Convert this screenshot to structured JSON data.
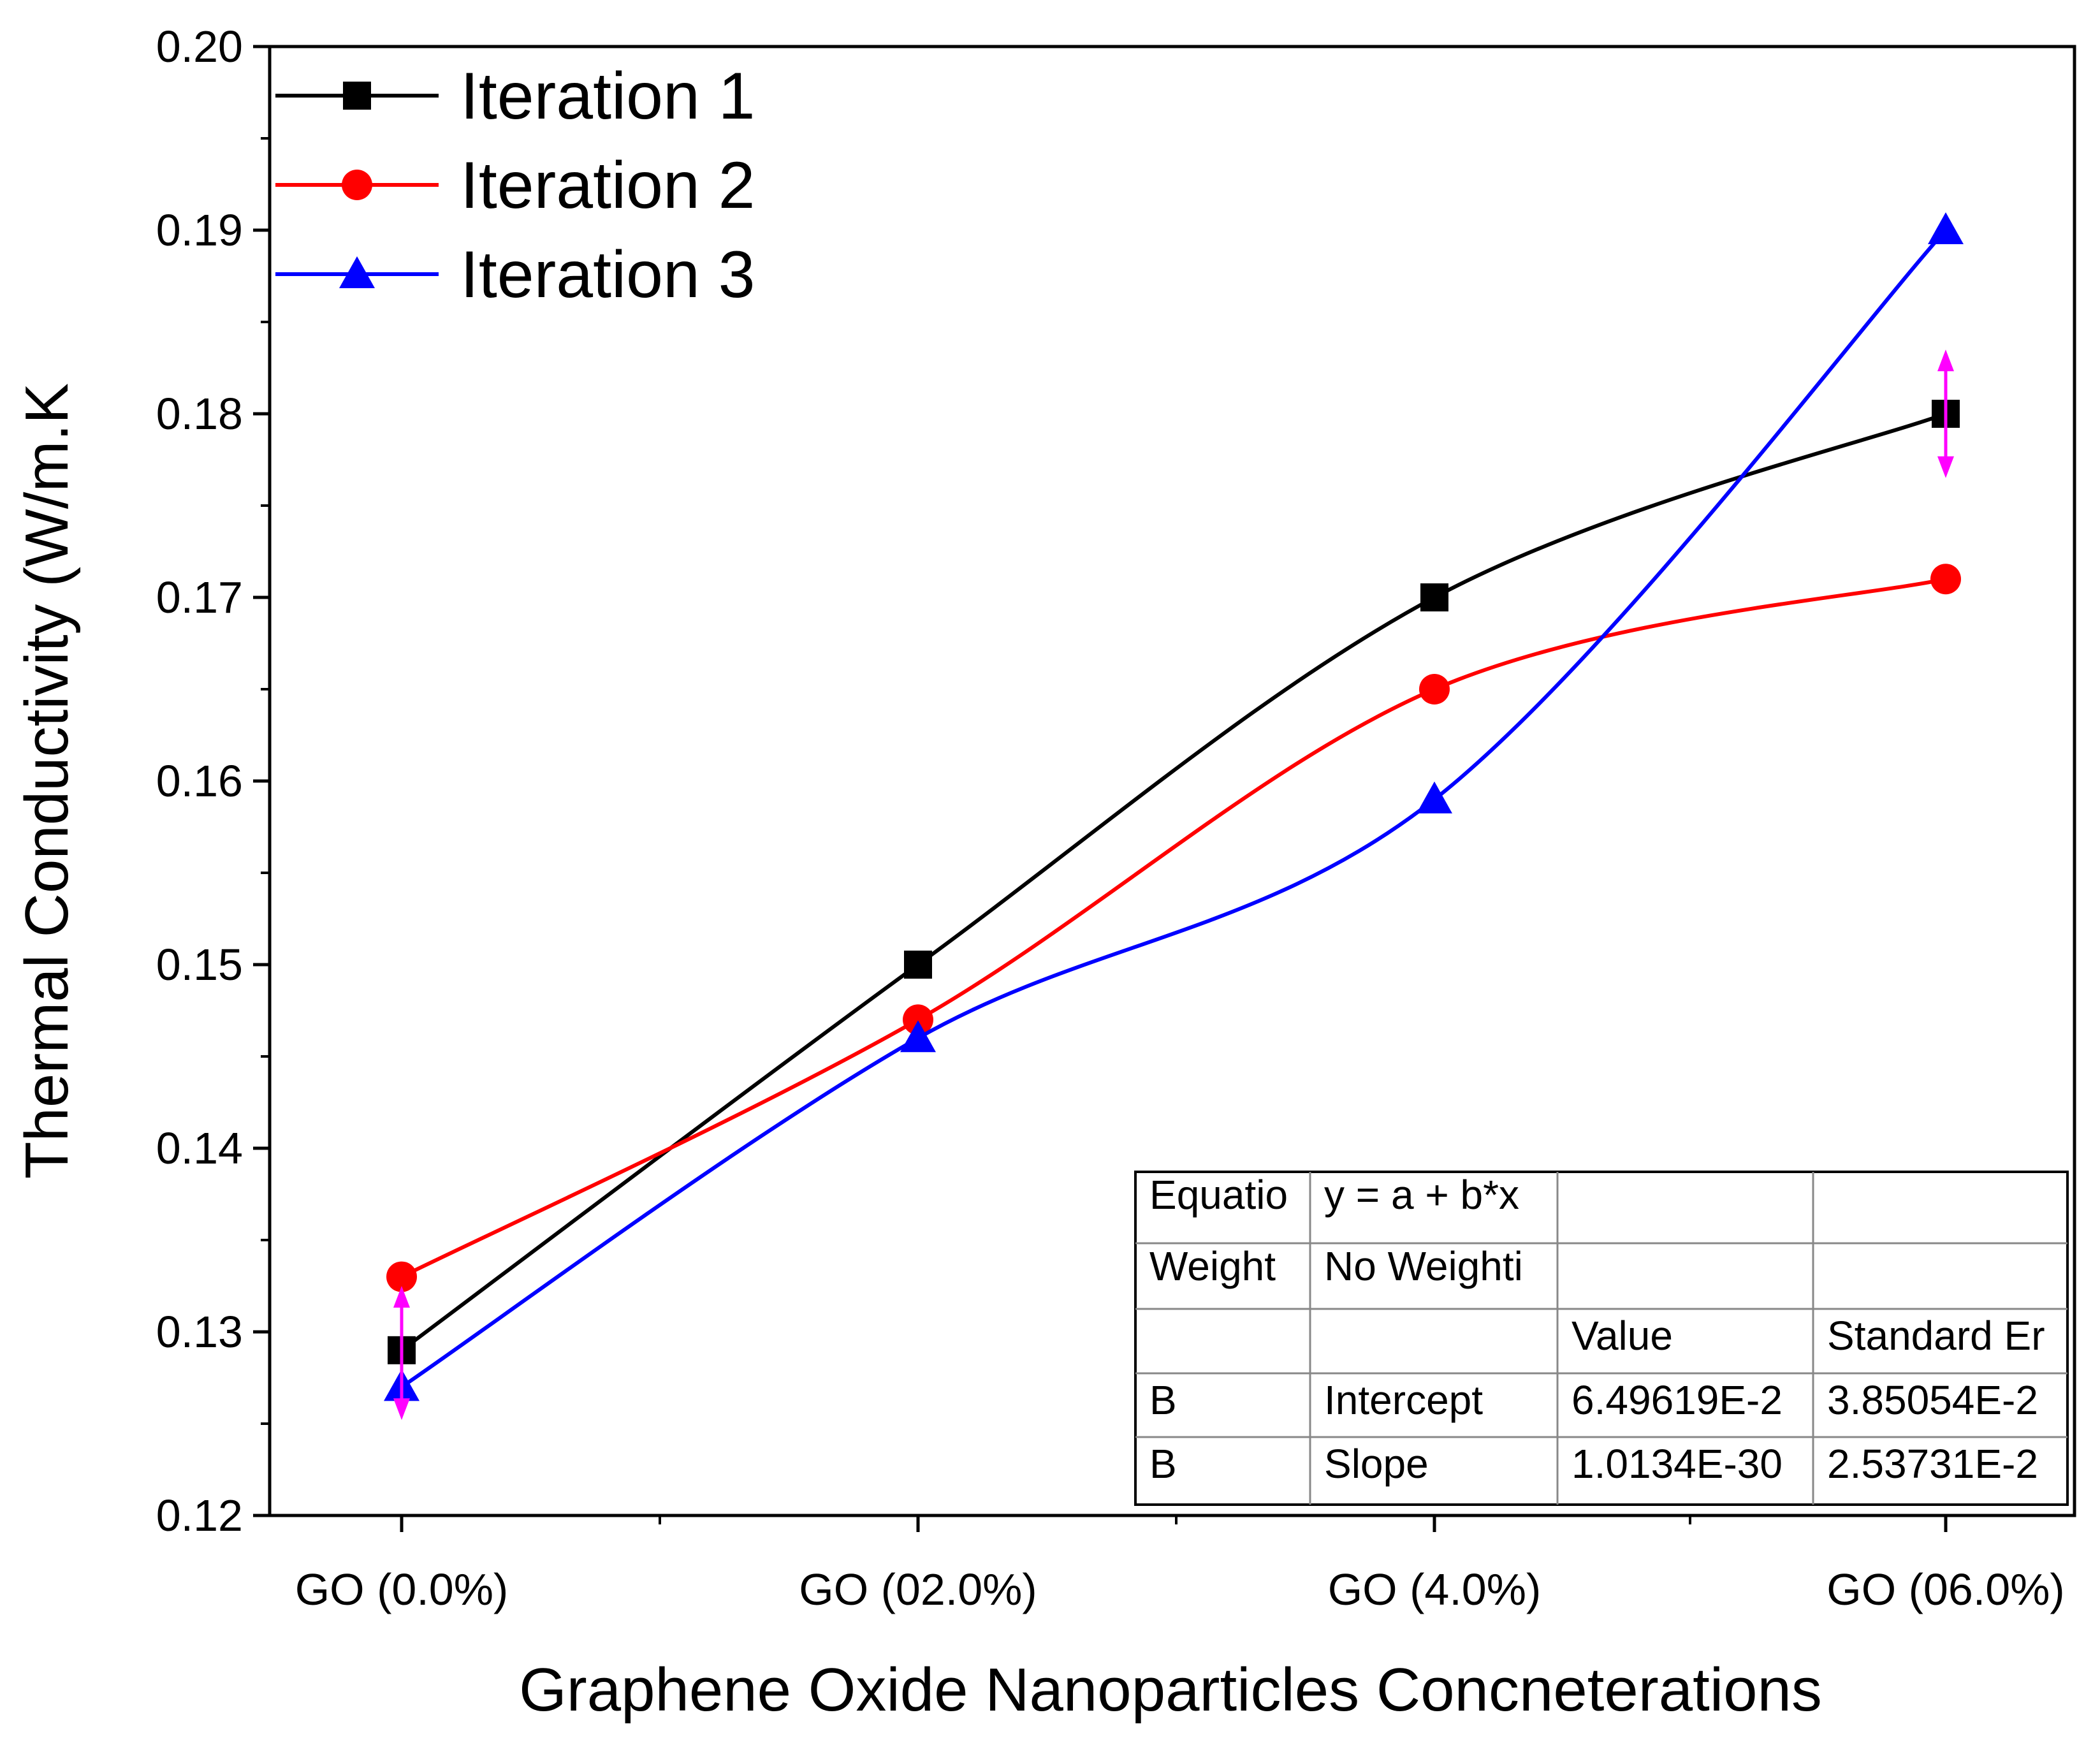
{
  "chart_data": {
    "type": "line",
    "title": "",
    "xlabel": "Graphene Oxide Nanoparticles Concneterations",
    "ylabel": "Thermal Conductivity (W/m.K",
    "categories": [
      "GO (0.0%)",
      "GO (02.0%)",
      "GO (4.0%)",
      "GO (06.0%)"
    ],
    "ylim": [
      0.12,
      0.2
    ],
    "yticks": [
      "0.12",
      "0.13",
      "0.14",
      "0.15",
      "0.16",
      "0.17",
      "0.18",
      "0.19",
      "0.20"
    ],
    "legend_position": "top-left",
    "series": [
      {
        "name": "Iteration 1",
        "values": [
          0.129,
          0.15,
          0.17,
          0.18
        ],
        "color": "#000000",
        "marker": "square"
      },
      {
        "name": "Iteration 2",
        "values": [
          0.133,
          0.147,
          0.165,
          0.171
        ],
        "color": "#ff0000",
        "marker": "circle"
      },
      {
        "name": "Iteration 3",
        "values": [
          0.127,
          0.146,
          0.159,
          0.19
        ],
        "color": "#0000ff",
        "marker": "triangle"
      }
    ],
    "annotation_color": "#ff00ff",
    "fit_table": {
      "rows": [
        [
          "Equatio",
          "y = a + b*x",
          "",
          ""
        ],
        [
          "Weight",
          "No Weighti",
          "",
          ""
        ],
        [
          "",
          "",
          "Value",
          "Standard Er"
        ],
        [
          "B",
          "Intercept",
          "6.49619E-2",
          "3.85054E-2"
        ],
        [
          "B",
          "Slope",
          "1.0134E-30",
          "2.53731E-2"
        ]
      ]
    }
  }
}
